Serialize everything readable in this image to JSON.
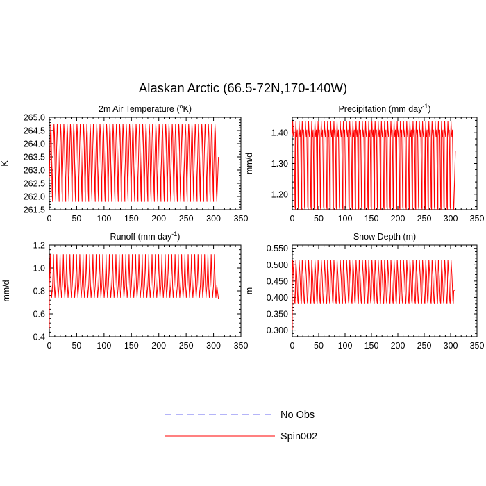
{
  "figure": {
    "title": "Alaskan Arctic (66.5-72N,170-140W)"
  },
  "legend": {
    "items": [
      {
        "label": "No Obs",
        "color": "#6a6af0",
        "style": "dashed"
      },
      {
        "label": "Spin002",
        "color": "#ff0000",
        "style": "solid"
      }
    ]
  },
  "chart_data": [
    {
      "type": "line",
      "title_main": "2m Air Temperature (",
      "title_sup": "o",
      "title_tail": "K)",
      "ylabel": "K",
      "xlim": [
        0,
        350
      ],
      "ylim": [
        261.5,
        265.0
      ],
      "xticks": [
        0,
        50,
        100,
        150,
        200,
        250,
        300,
        350
      ],
      "xtick_labels": [
        "0",
        "50",
        "100",
        "150",
        "200",
        "250",
        "300",
        "350"
      ],
      "yticks": [
        261.5,
        262.0,
        262.5,
        263.0,
        263.5,
        264.0,
        264.5,
        265.0
      ],
      "ytick_labels": [
        "261.5",
        "262.0",
        "262.5",
        "263.0",
        "263.5",
        "264.0",
        "264.5",
        "265.0"
      ],
      "series": [
        {
          "name": "Spin002",
          "color": "#ff0000",
          "x_start": 0,
          "x_end": 309,
          "period": 6,
          "profile": [
            262.7,
            263.35,
            264.1,
            264.75,
            264.4,
            263.3,
            262.2,
            261.8
          ],
          "tail_value": 263.5
        }
      ]
    },
    {
      "type": "line",
      "title_main": "Precipitation (mm day",
      "title_sup": "-1",
      "title_tail": ")",
      "ylabel": "mm/d",
      "xlim": [
        0,
        350
      ],
      "ylim": [
        1.15,
        1.45
      ],
      "xticks": [
        0,
        50,
        100,
        150,
        200,
        250,
        300,
        350
      ],
      "xtick_labels": [
        "0",
        "50",
        "100",
        "150",
        "200",
        "250",
        "300",
        "350"
      ],
      "yticks": [
        1.2,
        1.3,
        1.4
      ],
      "ytick_labels": [
        "1.20",
        "1.30",
        "1.40"
      ],
      "series": [
        {
          "name": "Spin002",
          "color": "#ff0000",
          "x_start": 0,
          "x_end": 309,
          "period": 6,
          "profile": [
            1.39,
            1.437,
            1.4,
            1.385,
            1.41,
            1.3,
            1.16,
            1.15
          ],
          "tail_value": 1.34
        }
      ]
    },
    {
      "type": "line",
      "title_main": "Runoff (mm day",
      "title_sup": "-1",
      "title_tail": ")",
      "ylabel": "mm/d",
      "xlim": [
        0,
        350
      ],
      "ylim": [
        0.4,
        1.2
      ],
      "xticks": [
        0,
        50,
        100,
        150,
        200,
        250,
        300,
        350
      ],
      "xtick_labels": [
        "0",
        "50",
        "100",
        "150",
        "200",
        "250",
        "300",
        "350"
      ],
      "yticks": [
        0.4,
        0.6,
        0.8,
        1.0,
        1.2
      ],
      "ytick_labels": [
        "0.4",
        "0.6",
        "0.8",
        "1.0",
        "1.2"
      ],
      "series": [
        {
          "name": "Spin002",
          "color": "#ff0000",
          "x_start": 0,
          "x_end": 309,
          "period": 6,
          "profile": [
            0.85,
            0.96,
            1.12,
            0.95,
            0.82,
            0.74,
            0.8,
            0.85
          ],
          "start_value": 0.47,
          "tail_value": 0.73
        }
      ]
    },
    {
      "type": "line",
      "title_main": "Snow Depth (m)",
      "title_sup": "",
      "title_tail": "",
      "ylabel": "m",
      "xlim": [
        0,
        350
      ],
      "ylim": [
        0.28,
        0.56
      ],
      "xticks": [
        0,
        50,
        100,
        150,
        200,
        250,
        300,
        350
      ],
      "xtick_labels": [
        "0",
        "50",
        "100",
        "150",
        "200",
        "250",
        "300",
        "350"
      ],
      "yticks": [
        0.3,
        0.35,
        0.4,
        0.45,
        0.5,
        0.55
      ],
      "ytick_labels": [
        "0.300",
        "0.350",
        "0.400",
        "0.450",
        "0.500",
        "0.550"
      ],
      "series": [
        {
          "name": "Spin002",
          "color": "#ff0000",
          "x_start": 0,
          "x_end": 309,
          "period": 6,
          "profile": [
            0.44,
            0.515,
            0.49,
            0.465,
            0.43,
            0.39,
            0.38,
            0.42
          ],
          "start_value": 0.3,
          "tail_value": 0.425
        }
      ]
    }
  ]
}
